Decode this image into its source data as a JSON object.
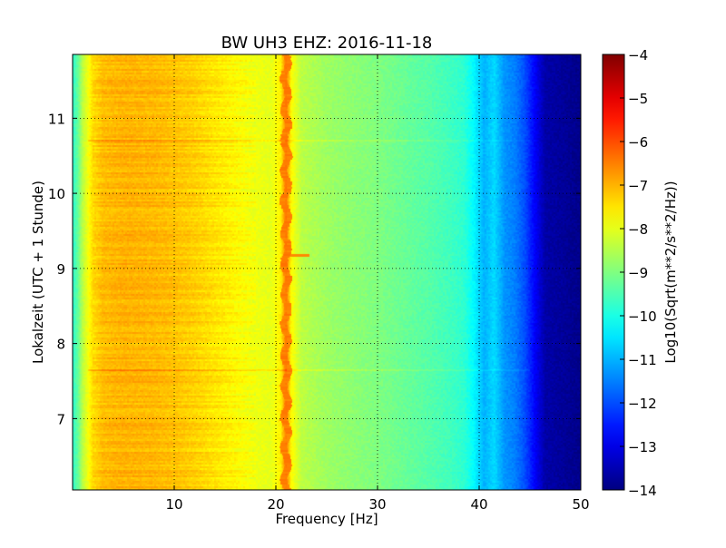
{
  "chart_data": {
    "type": "heatmap",
    "title": "BW UH3 EHZ: 2016-11-18",
    "xlabel": "Frequency [Hz]",
    "ylabel": "Lokalzeit (UTC + 1 Stunde)",
    "xlim": [
      0,
      50
    ],
    "ylim": [
      11.85,
      6.05
    ],
    "x_ticks": [
      10,
      20,
      30,
      40,
      50
    ],
    "y_ticks": [
      7,
      8,
      9,
      10,
      11
    ],
    "grid": true,
    "grid_style": "dotted",
    "colormap": "jet",
    "colorbar": {
      "label": "Log10(Sqrt(m**2/s**2/Hz))",
      "range": [
        -14,
        -4
      ],
      "ticks": [
        -4,
        -5,
        -6,
        -7,
        -8,
        -9,
        -10,
        -11,
        -12,
        -13,
        -14
      ]
    },
    "spectrum_profile": {
      "frequency_hz": [
        0,
        0.5,
        1.0,
        1.5,
        2,
        3,
        5,
        8,
        10,
        12,
        14,
        16,
        18,
        19.5,
        20.5,
        21,
        21.5,
        22.5,
        25,
        28,
        30,
        33,
        35,
        37,
        38.5,
        39.5,
        40.5,
        41.5,
        42.5,
        43.5,
        44.5,
        45.5,
        46.5,
        50
      ],
      "log10_amplitude": [
        -9.8,
        -9.3,
        -8.4,
        -7.9,
        -7.4,
        -7.1,
        -7.0,
        -7.05,
        -7.15,
        -7.3,
        -7.5,
        -7.7,
        -7.9,
        -8.0,
        -7.6,
        -6.4,
        -7.7,
        -8.4,
        -8.7,
        -8.9,
        -9.0,
        -9.25,
        -9.4,
        -9.6,
        -9.8,
        -10.3,
        -11.0,
        -10.6,
        -11.3,
        -11.5,
        -12.0,
        -12.8,
        -13.6,
        -13.9
      ]
    },
    "features": [
      {
        "label": "line near 21 Hz",
        "frequency_hz": 21,
        "log10_amplitude": -6.5
      },
      {
        "label": "broadband event",
        "time": 7.65,
        "log10_amplitude_increase": 0.6
      },
      {
        "label": "broadband event",
        "time": 10.7,
        "log10_amplitude_increase": 0.5
      },
      {
        "label": "short burst",
        "time": 9.17,
        "frequency_range_hz": [
          21,
          23.3
        ]
      }
    ]
  }
}
